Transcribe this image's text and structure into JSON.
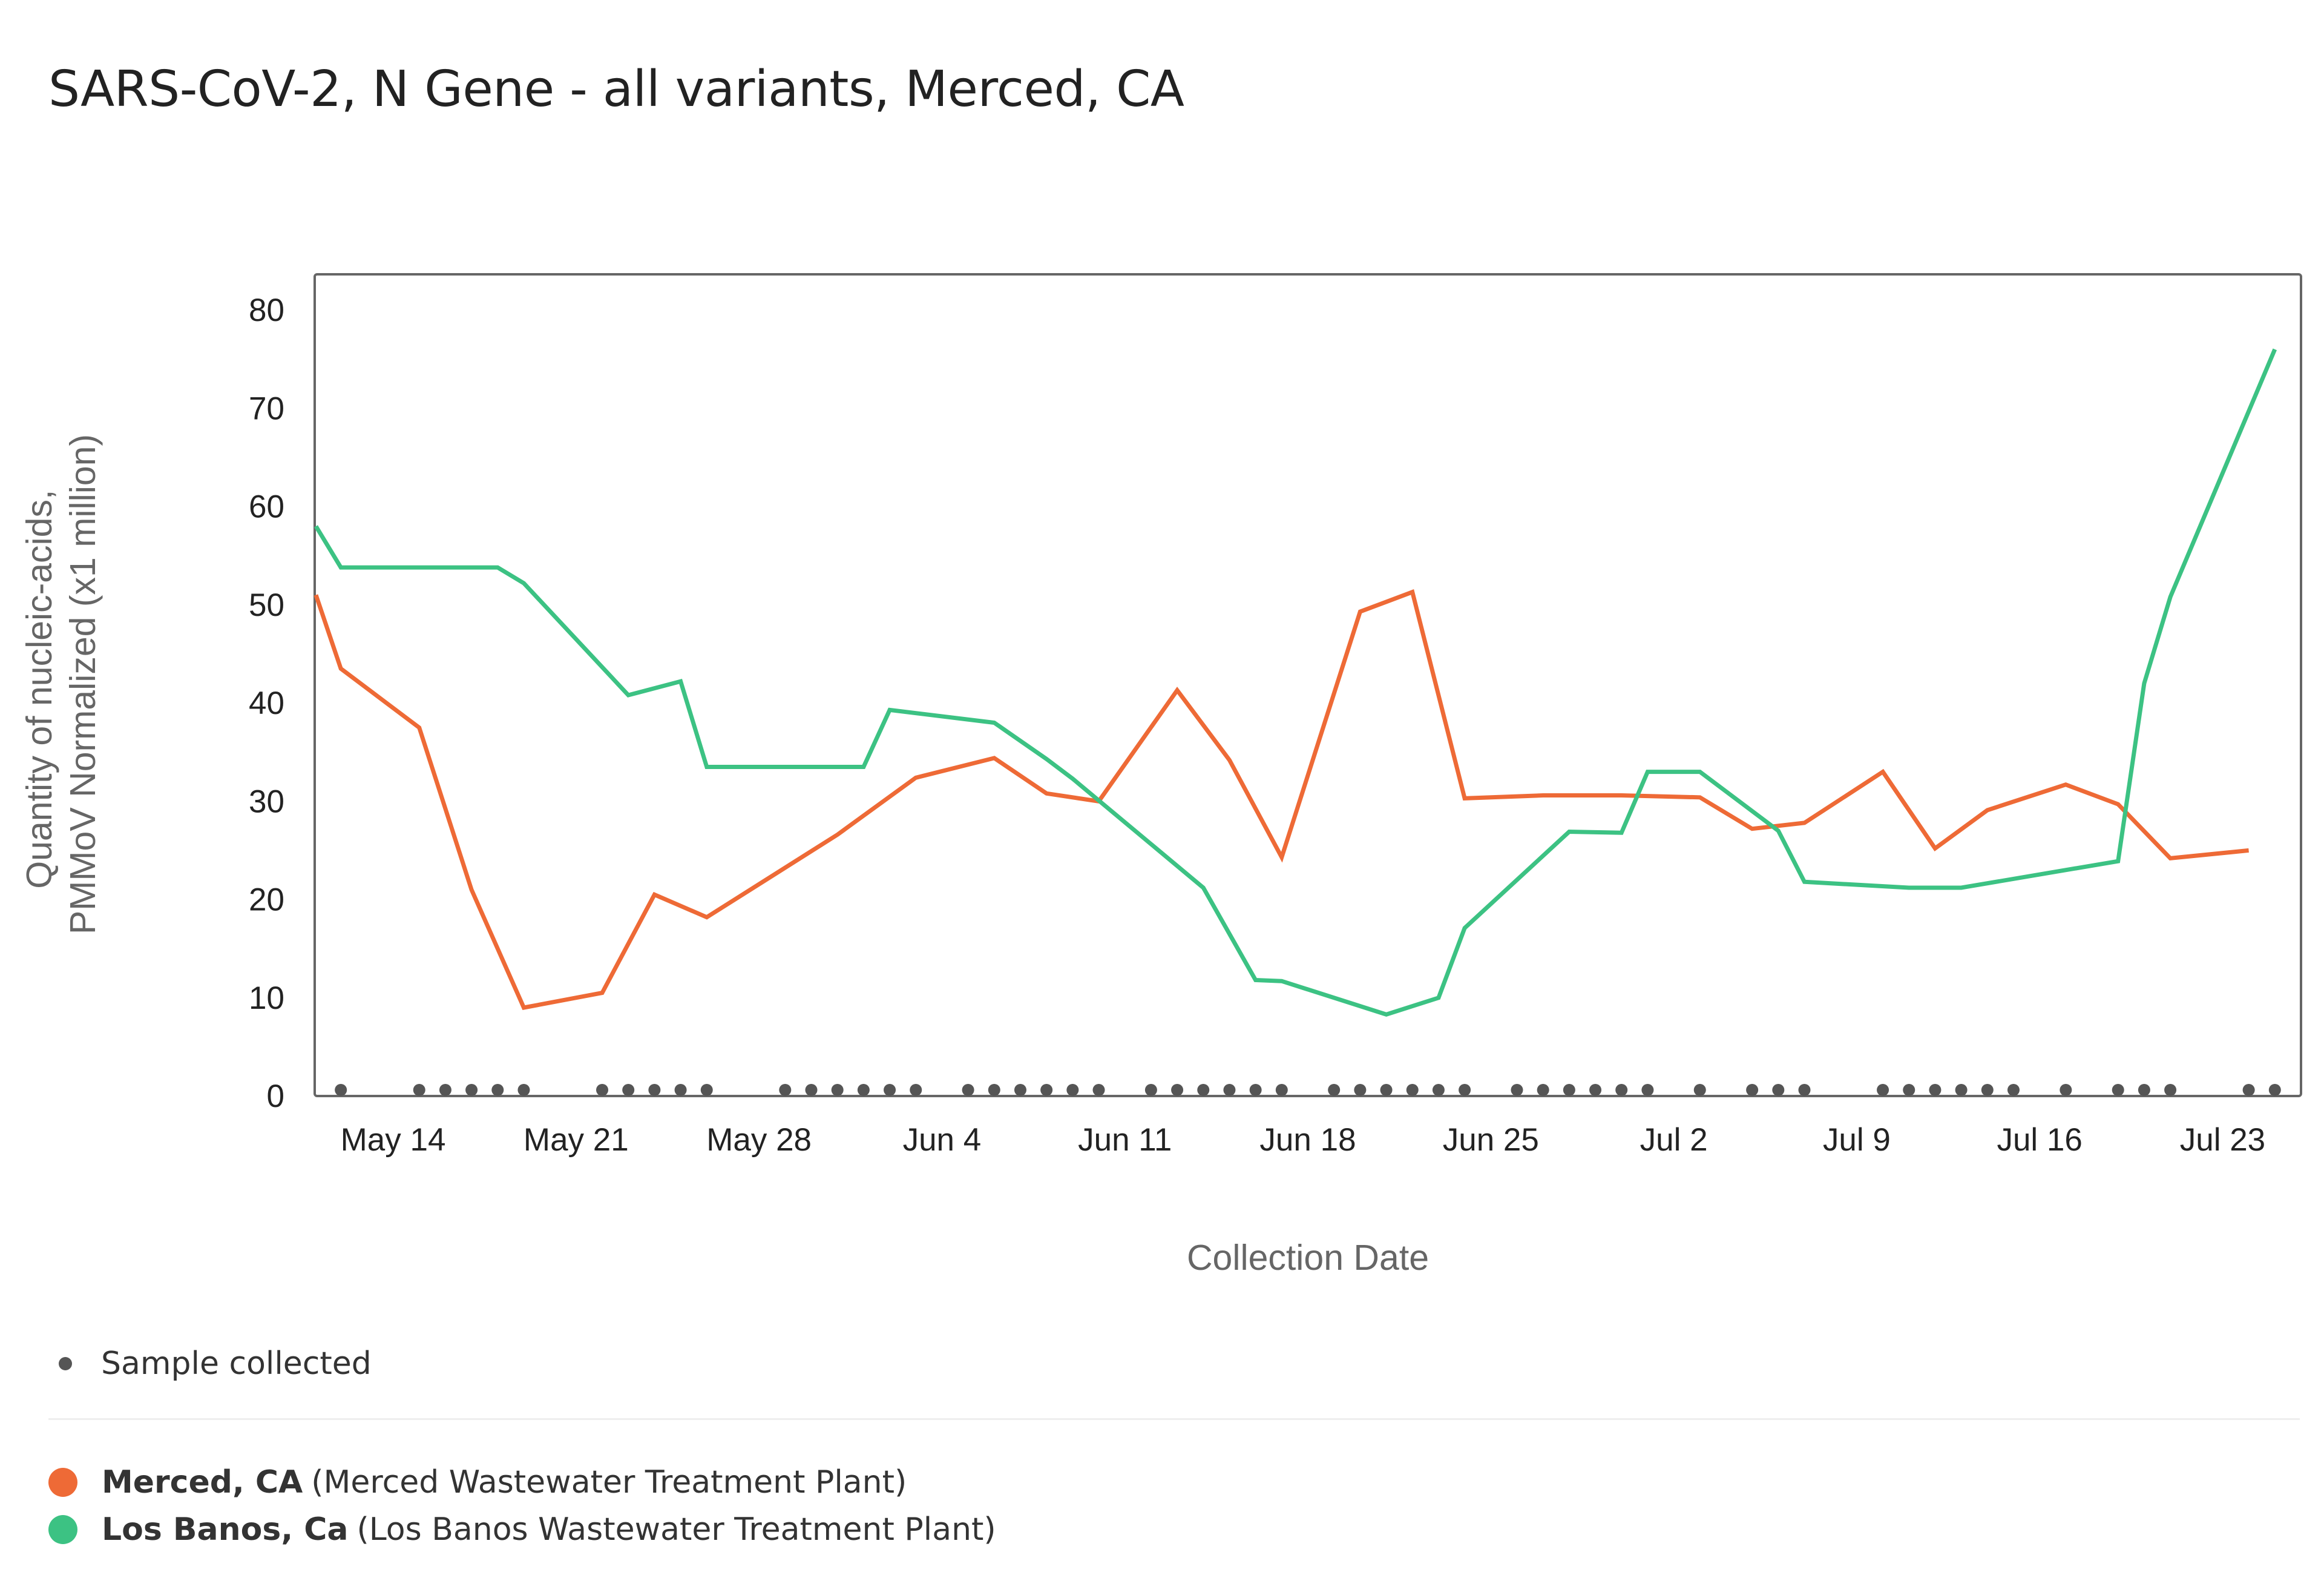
{
  "chart_data": {
    "type": "line",
    "title": "SARS-CoV-2, N Gene - all variants, Merced, CA",
    "xlabel": "Collection Date",
    "ylabel_lines": [
      "Quantity of nucleic-acids,",
      "PMMoV Normalized (x1 million)"
    ],
    "ylim": [
      0,
      80
    ],
    "yticks": [
      "0",
      "10",
      "20",
      "30",
      "40",
      "50",
      "60",
      "70",
      "80"
    ],
    "xlim": [
      "2022-05-11",
      "2022-07-26"
    ],
    "xticks": [
      {
        "date": "2022-05-14",
        "label": "May 14"
      },
      {
        "date": "2022-05-21",
        "label": "May 21"
      },
      {
        "date": "2022-05-28",
        "label": "May 28"
      },
      {
        "date": "2022-06-04",
        "label": "Jun 4"
      },
      {
        "date": "2022-06-11",
        "label": "Jun 11"
      },
      {
        "date": "2022-06-18",
        "label": "Jun 18"
      },
      {
        "date": "2022-06-25",
        "label": "Jun 25"
      },
      {
        "date": "2022-07-02",
        "label": "Jul 2"
      },
      {
        "date": "2022-07-09",
        "label": "Jul 9"
      },
      {
        "date": "2022-07-16",
        "label": "Jul 16"
      },
      {
        "date": "2022-07-23",
        "label": "Jul 23"
      }
    ],
    "grid": false,
    "legend_position": "bottom-left",
    "series": [
      {
        "name": "Merced, CA",
        "site": "(Merced Wastewater Treatment Plant)",
        "color": "#ee6a36",
        "points": [
          {
            "x": "2022-05-12",
            "y": 51
          },
          {
            "x": "2022-05-12",
            "y": 43.5
          },
          {
            "x": "2022-05-15",
            "y": 37.5
          },
          {
            "x": "2022-05-17",
            "y": 21
          },
          {
            "x": "2022-05-19",
            "y": 9
          },
          {
            "x": "2022-05-22",
            "y": 10.5
          },
          {
            "x": "2022-05-24",
            "y": 20.5
          },
          {
            "x": "2022-05-26",
            "y": 18.2
          },
          {
            "x": "2022-05-31",
            "y": 26.6
          },
          {
            "x": "2022-06-03",
            "y": 32.4
          },
          {
            "x": "2022-06-06",
            "y": 34.4
          },
          {
            "x": "2022-06-08",
            "y": 30.8
          },
          {
            "x": "2022-06-10",
            "y": 30
          },
          {
            "x": "2022-06-13",
            "y": 41.3
          },
          {
            "x": "2022-06-15",
            "y": 34.2
          },
          {
            "x": "2022-06-17",
            "y": 24.3
          },
          {
            "x": "2022-06-20",
            "y": 49.3
          },
          {
            "x": "2022-06-22",
            "y": 51.3
          },
          {
            "x": "2022-06-24",
            "y": 30.3
          },
          {
            "x": "2022-06-27",
            "y": 30.6
          },
          {
            "x": "2022-06-30",
            "y": 30.6
          },
          {
            "x": "2022-07-03",
            "y": 30.4
          },
          {
            "x": "2022-07-05",
            "y": 27.2
          },
          {
            "x": "2022-07-07",
            "y": 27.8
          },
          {
            "x": "2022-07-10",
            "y": 33
          },
          {
            "x": "2022-07-12",
            "y": 25.2
          },
          {
            "x": "2022-07-14",
            "y": 29.1
          },
          {
            "x": "2022-07-17",
            "y": 31.7
          },
          {
            "x": "2022-07-19",
            "y": 29.7
          },
          {
            "x": "2022-07-21",
            "y": 24.2
          },
          {
            "x": "2022-07-24",
            "y": 25
          }
        ]
      },
      {
        "name": "Los Banos, Ca",
        "site": "(Los Banos Wastewater Treatment Plant)",
        "color": "#3cc283",
        "points": [
          {
            "x": "2022-05-12",
            "y": 58
          },
          {
            "x": "2022-05-12",
            "y": 53.8
          },
          {
            "x": "2022-05-18",
            "y": 53.8
          },
          {
            "x": "2022-05-19",
            "y": 52.2
          },
          {
            "x": "2022-05-23",
            "y": 40.8
          },
          {
            "x": "2022-05-25",
            "y": 42.2
          },
          {
            "x": "2022-05-26",
            "y": 33.5
          },
          {
            "x": "2022-06-01",
            "y": 33.5
          },
          {
            "x": "2022-06-02",
            "y": 39.3
          },
          {
            "x": "2022-06-06",
            "y": 38
          },
          {
            "x": "2022-06-08",
            "y": 34.3
          },
          {
            "x": "2022-06-09",
            "y": 32.3
          },
          {
            "x": "2022-06-14",
            "y": 21.2
          },
          {
            "x": "2022-06-16",
            "y": 11.8
          },
          {
            "x": "2022-06-17",
            "y": 11.7
          },
          {
            "x": "2022-06-21",
            "y": 8.3
          },
          {
            "x": "2022-06-23",
            "y": 10
          },
          {
            "x": "2022-06-24",
            "y": 17.1
          },
          {
            "x": "2022-06-28",
            "y": 26.9
          },
          {
            "x": "2022-06-30",
            "y": 26.8
          },
          {
            "x": "2022-07-01",
            "y": 33
          },
          {
            "x": "2022-07-03",
            "y": 33
          },
          {
            "x": "2022-07-06",
            "y": 27
          },
          {
            "x": "2022-07-07",
            "y": 21.8
          },
          {
            "x": "2022-07-11",
            "y": 21.2
          },
          {
            "x": "2022-07-13",
            "y": 21.2
          },
          {
            "x": "2022-07-19",
            "y": 23.9
          },
          {
            "x": "2022-07-20",
            "y": 42
          },
          {
            "x": "2022-07-21",
            "y": 50.8
          },
          {
            "x": "2022-07-25",
            "y": 76
          }
        ]
      }
    ],
    "samples": {
      "label": "Sample collected",
      "color": "#555555",
      "dates": [
        "2022-05-12",
        "2022-05-15",
        "2022-05-16",
        "2022-05-17",
        "2022-05-18",
        "2022-05-19",
        "2022-05-22",
        "2022-05-23",
        "2022-05-24",
        "2022-05-25",
        "2022-05-26",
        "2022-05-29",
        "2022-05-30",
        "2022-05-31",
        "2022-06-01",
        "2022-06-02",
        "2022-06-03",
        "2022-06-05",
        "2022-06-06",
        "2022-06-07",
        "2022-06-08",
        "2022-06-09",
        "2022-06-10",
        "2022-06-12",
        "2022-06-13",
        "2022-06-14",
        "2022-06-15",
        "2022-06-16",
        "2022-06-17",
        "2022-06-19",
        "2022-06-20",
        "2022-06-21",
        "2022-06-22",
        "2022-06-23",
        "2022-06-24",
        "2022-06-26",
        "2022-06-27",
        "2022-06-28",
        "2022-06-29",
        "2022-06-30",
        "2022-07-01",
        "2022-07-03",
        "2022-07-05",
        "2022-07-06",
        "2022-07-07",
        "2022-07-10",
        "2022-07-11",
        "2022-07-12",
        "2022-07-13",
        "2022-07-14",
        "2022-07-15",
        "2022-07-17",
        "2022-07-19",
        "2022-07-20",
        "2022-07-21",
        "2022-07-24",
        "2022-07-25"
      ]
    }
  }
}
